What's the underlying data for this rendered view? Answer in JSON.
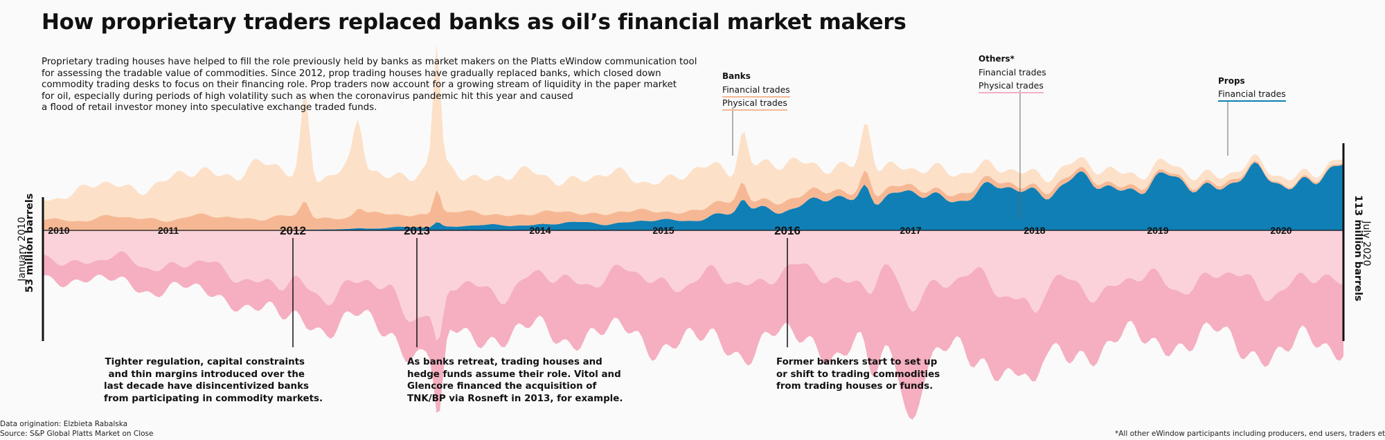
{
  "title": "How proprietary traders replaced banks as oil’s financial market makers",
  "intro_lines": [
    "Proprietary trading houses have helped to fill the role previously held by banks as market makers on the Platts eWindow communication tool",
    "for assessing the tradable value of commodities. Since 2012, prop trading houses have gradually replaced banks, which closed down",
    "commodity trading desks to focus on their financing role. Prop traders now account for a growing stream of liquidity in the paper market",
    "for oil, especially during periods of high volatility such as when the coronavirus pandemic hit this year and caused",
    "a flood of retail investor money into speculative exchange traded funds."
  ],
  "legend": {
    "banks": {
      "heading": "Banks",
      "financial": "Financial trades",
      "physical": "Physical trades"
    },
    "others": {
      "heading": "Others*",
      "financial": "Financial trades",
      "physical": "Physical trades"
    },
    "props": {
      "heading": "Props",
      "financial": "Financial trades"
    }
  },
  "colors": {
    "banks_financial": "#f6b894",
    "banks_physical": "#fde0c8",
    "others_financial": "#fbd2d9",
    "others_physical": "#f5afc0",
    "props_financial": "#0f7fb6",
    "axis": "#111111"
  },
  "start_label": {
    "date": "January 2010",
    "value": "53 million barrels"
  },
  "end_label": {
    "date": "July 2020",
    "value": "113 million barrels"
  },
  "annotations": [
    {
      "lines": [
        "Tighter regulation, capital constraints",
        "and thin margins introduced over the",
        "last decade have disincentivized banks",
        "from participating in commodity markets."
      ]
    },
    {
      "lines": [
        "As banks retreat, trading houses and",
        "hedge funds assume their role. Vitol and",
        "Glencore financed the acquisition of",
        "TNK/BP via Rosneft in 2013, for example."
      ]
    },
    {
      "lines": [
        "Former bankers start to set up",
        "or shift to trading commodities",
        "from trading houses or funds."
      ]
    }
  ],
  "footer": {
    "origination": "Data origination: Elzbieta Rabalska",
    "source": "Source: S&P Global Platts Market on Close",
    "note": "*All other eWindow participants including producers, end users, traders etc"
  },
  "chart_data": {
    "type": "area",
    "layout": "streamgraph",
    "unit": "million barrels",
    "x_start": "2010-01",
    "x_end": "2020-07",
    "categories": [
      "2010",
      "2011",
      "2012",
      "2013",
      "2014",
      "2015",
      "2016",
      "2017",
      "2018",
      "2019",
      "2020"
    ],
    "highlight_years": [
      "2012",
      "2013",
      "2016"
    ],
    "x": [
      2010.0,
      2010.5,
      2011.0,
      2011.5,
      2012.0,
      2012.5,
      2013.0,
      2013.5,
      2014.0,
      2014.5,
      2015.0,
      2015.5,
      2016.0,
      2016.5,
      2017.0,
      2017.5,
      2018.0,
      2018.5,
      2019.0,
      2019.5,
      2020.0,
      2020.5
    ],
    "first_value": 53,
    "last_value": 113,
    "series": [
      {
        "name": "Props – Financial trades",
        "key": "props_financial",
        "side": "above",
        "values": [
          0,
          0,
          0,
          0,
          0,
          1,
          2,
          3,
          4,
          5,
          6,
          10,
          16,
          20,
          22,
          24,
          28,
          30,
          30,
          32,
          34,
          36
        ]
      },
      {
        "name": "Banks – Financial trades",
        "key": "banks_financial",
        "side": "above",
        "values": [
          7,
          8,
          8,
          9,
          8,
          8,
          9,
          8,
          7,
          7,
          6,
          7,
          6,
          5,
          4,
          4,
          3,
          3,
          2,
          2,
          1,
          1
        ]
      },
      {
        "name": "Banks – Physical trades",
        "key": "banks_physical",
        "side": "above",
        "values": [
          16,
          20,
          24,
          32,
          30,
          29,
          28,
          26,
          24,
          23,
          22,
          24,
          22,
          16,
          14,
          12,
          8,
          8,
          7,
          5,
          4,
          3
        ]
      },
      {
        "name": "Others – Financial trades",
        "key": "others_financial",
        "side": "below",
        "values": [
          18,
          20,
          22,
          26,
          40,
          36,
          48,
          38,
          34,
          30,
          32,
          34,
          28,
          30,
          32,
          34,
          40,
          36,
          34,
          32,
          36,
          34
        ]
      },
      {
        "name": "Others – Physical trades",
        "key": "others_physical",
        "side": "below",
        "values": [
          12,
          14,
          16,
          18,
          20,
          24,
          26,
          30,
          34,
          38,
          40,
          42,
          44,
          46,
          48,
          52,
          46,
          40,
          38,
          40,
          44,
          39
        ]
      }
    ]
  }
}
